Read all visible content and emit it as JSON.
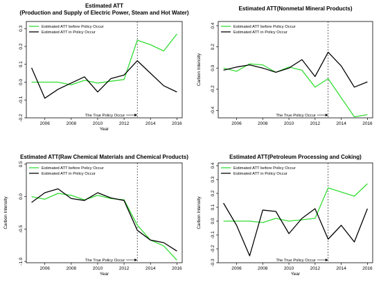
{
  "chart_data": [
    {
      "type": "line",
      "title": "Estimated ATT",
      "subtitle": "(Production and Supply of Electric Power, Steam and Hot Water)",
      "xlabel": "Year",
      "ylabel": "",
      "xlim": [
        2004.6,
        2016.4
      ],
      "ylim": [
        -0.2,
        0.34
      ],
      "yticks": [
        -0.2,
        -0.1,
        0.0,
        0.1,
        0.2,
        0.3
      ],
      "ytick_labels": [
        "-0.2",
        "-0.1",
        "0.0",
        "0.1",
        "0.2",
        "0.3"
      ],
      "xticks": [
        2006,
        2008,
        2010,
        2012,
        2014,
        2016
      ],
      "xtick_labels": [
        "2006",
        "2008",
        "2010",
        "2012",
        "2014",
        "2016"
      ],
      "legend_position": "top-left",
      "policy_year": 2013,
      "annotation": "The True Policy Occur",
      "series": [
        {
          "name": "Estimated ATT before Policy Occur",
          "color": "#33dd33",
          "x": [
            2005,
            2006,
            2007,
            2008,
            2009,
            2010,
            2011,
            2012,
            2013,
            2014,
            2015,
            2016
          ],
          "y": [
            0.0,
            0.0,
            0.0,
            -0.015,
            0.01,
            -0.005,
            0.005,
            0.015,
            0.235,
            0.21,
            0.175,
            0.27
          ]
        },
        {
          "name": "Estimated ATT in Policy Occur",
          "color": "#000000",
          "x": [
            2005,
            2006,
            2007,
            2008,
            2009,
            2010,
            2011,
            2012,
            2013,
            2014,
            2015,
            2016
          ],
          "y": [
            0.08,
            -0.09,
            -0.04,
            -0.005,
            0.03,
            -0.055,
            0.02,
            0.04,
            0.12,
            0.05,
            -0.02,
            -0.055
          ]
        }
      ]
    },
    {
      "type": "line",
      "title": "Estimated ATT(Nonmetal Mineral Products)",
      "xlabel": "",
      "ylabel": "Carbon Intensity",
      "xlim": [
        2004.6,
        2016.4
      ],
      "ylim": [
        -0.47,
        0.44
      ],
      "yticks": [
        -0.4,
        -0.2,
        0.0,
        0.2,
        0.4
      ],
      "ytick_labels": [
        "-0.4",
        "-0.2",
        "0.0",
        "0.2",
        "0.4"
      ],
      "xticks": [
        2006,
        2008,
        2010,
        2012,
        2014,
        2016
      ],
      "xtick_labels": [
        "2006",
        "2008",
        "2010",
        "2012",
        "2014",
        "2016"
      ],
      "legend_position": "top-left",
      "policy_year": 2013,
      "annotation": "The True Policy Occur",
      "series": [
        {
          "name": "Estimated ATT before Policy Occur",
          "color": "#33dd33",
          "x": [
            2005,
            2006,
            2007,
            2008,
            2009,
            2010,
            2011,
            2012,
            2013,
            2014,
            2015,
            2016
          ],
          "y": [
            0.0,
            -0.03,
            0.04,
            0.03,
            -0.04,
            0.01,
            -0.02,
            -0.18,
            -0.1,
            -0.28,
            -0.46,
            -0.44
          ]
        },
        {
          "name": "Estimated ATT in Policy Occur",
          "color": "#000000",
          "x": [
            2005,
            2006,
            2007,
            2008,
            2009,
            2010,
            2011,
            2012,
            2013,
            2014,
            2015,
            2016
          ],
          "y": [
            -0.02,
            0.01,
            0.03,
            0.0,
            -0.04,
            0.0,
            0.08,
            -0.08,
            0.15,
            0.02,
            -0.18,
            -0.13
          ]
        }
      ]
    },
    {
      "type": "line",
      "title": "Estimated ATT(Raw Chemical Materials and Chemical Products)",
      "xlabel": "Year",
      "ylabel": "Carbon Intensity",
      "xlim": [
        2004.6,
        2016.4
      ],
      "ylim": [
        -1.02,
        0.52
      ],
      "yticks": [
        -1.0,
        -0.5,
        0.0,
        0.5
      ],
      "ytick_labels": [
        "-1.0",
        "-0.5",
        "0.0",
        "0.5"
      ],
      "xticks": [
        2006,
        2008,
        2010,
        2012,
        2014,
        2016
      ],
      "xtick_labels": [
        "2006",
        "2008",
        "2010",
        "2012",
        "2014",
        "2016"
      ],
      "legend_position": "top-left",
      "policy_year": 2013,
      "annotation": "The True Policy Occur",
      "series": [
        {
          "name": "Estimated ATT before Policy Occur",
          "color": "#33dd33",
          "x": [
            2005,
            2006,
            2007,
            2008,
            2009,
            2010,
            2011,
            2012,
            2013,
            2014,
            2015,
            2016
          ],
          "y": [
            0.0,
            -0.04,
            0.05,
            0.02,
            -0.05,
            0.02,
            -0.03,
            -0.05,
            -0.44,
            -0.67,
            -0.76,
            -0.98
          ]
        },
        {
          "name": "Estimated ATT in Policy Occur",
          "color": "#000000",
          "x": [
            2005,
            2006,
            2007,
            2008,
            2009,
            2010,
            2011,
            2012,
            2013,
            2014,
            2015,
            2016
          ],
          "y": [
            -0.09,
            0.06,
            0.12,
            -0.03,
            -0.06,
            0.06,
            -0.02,
            -0.06,
            -0.52,
            -0.67,
            -0.71,
            -0.84
          ]
        }
      ]
    },
    {
      "type": "line",
      "title": "Estimated ATT(Petroleum Processing and Coking)",
      "xlabel": "Year",
      "ylabel": "Carbon Intensity",
      "xlim": [
        2004.6,
        2016.4
      ],
      "ylim": [
        -0.3,
        0.42
      ],
      "yticks": [
        -0.3,
        -0.2,
        -0.1,
        0.0,
        0.1,
        0.2,
        0.3,
        0.4
      ],
      "ytick_labels": [
        "-0.3",
        "-0.2",
        "-0.1",
        "0.0",
        "0.1",
        "0.2",
        "0.3",
        "0.4"
      ],
      "xticks": [
        2006,
        2008,
        2010,
        2012,
        2014,
        2016
      ],
      "xtick_labels": [
        "2006",
        "2008",
        "2010",
        "2012",
        "2014",
        "2016"
      ],
      "legend_position": "top-left",
      "policy_year": 2013,
      "annotation": "The True Policy Occur",
      "series": [
        {
          "name": "Estimated ATT before Policy Occur",
          "color": "#33dd33",
          "x": [
            2005,
            2006,
            2007,
            2008,
            2009,
            2010,
            2011,
            2012,
            2013,
            2014,
            2015,
            2016
          ],
          "y": [
            0.0,
            0.0,
            0.0,
            -0.01,
            0.02,
            0.0,
            0.01,
            0.02,
            0.24,
            0.21,
            0.18,
            0.27
          ]
        },
        {
          "name": "Estimated ATT in Policy Occur",
          "color": "#000000",
          "x": [
            2005,
            2006,
            2007,
            2008,
            2009,
            2010,
            2011,
            2012,
            2013,
            2014,
            2015,
            2016
          ],
          "y": [
            0.13,
            -0.03,
            -0.25,
            0.08,
            0.07,
            -0.09,
            0.02,
            0.09,
            -0.13,
            -0.03,
            -0.15,
            0.09
          ]
        }
      ]
    }
  ]
}
